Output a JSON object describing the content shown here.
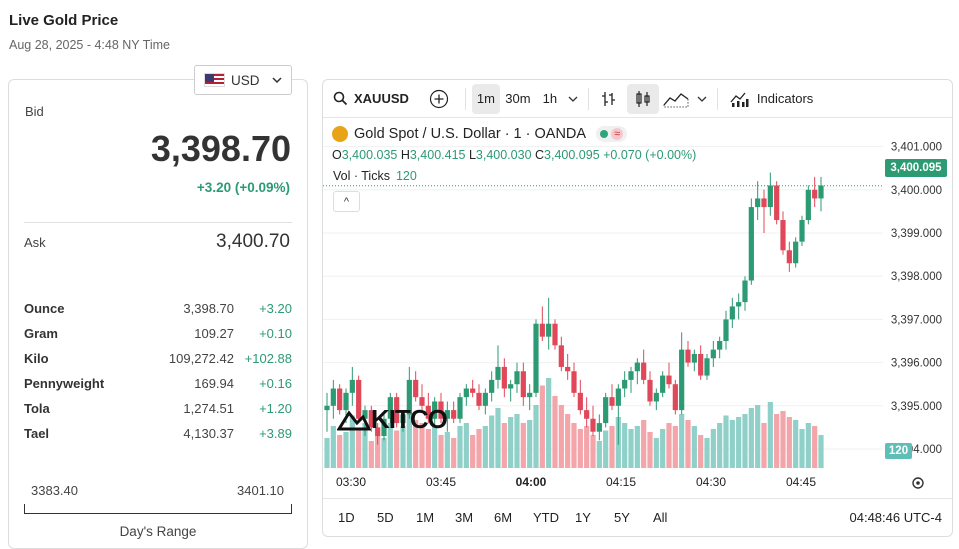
{
  "header": {
    "title": "Live Gold Price",
    "datetime": "Aug 28, 2025 - 4:48 NY Time"
  },
  "currency": {
    "selected": "USD",
    "flag_icon": "us-flag-icon"
  },
  "bid": {
    "label": "Bid",
    "value": "3,398.70",
    "change": "+3.20 (+0.09%)"
  },
  "ask": {
    "label": "Ask",
    "value": "3,400.70"
  },
  "units": [
    {
      "name": "Ounce",
      "price": "3,398.70",
      "change": "+3.20"
    },
    {
      "name": "Gram",
      "price": "109.27",
      "change": "+0.10"
    },
    {
      "name": "Kilo",
      "price": "109,272.42",
      "change": "+102.88"
    },
    {
      "name": "Pennyweight",
      "price": "169.94",
      "change": "+0.16"
    },
    {
      "name": "Tola",
      "price": "1,274.51",
      "change": "+1.20"
    },
    {
      "name": "Tael",
      "price": "4,130.37",
      "change": "+3.89"
    }
  ],
  "days_range": {
    "low": "3383.40",
    "high": "3401.10",
    "label": "Day's Range"
  },
  "toolbar": {
    "symbol": "XAUUSD",
    "intervals": [
      "1m",
      "30m",
      "1h"
    ],
    "active_interval": "1m",
    "indicators_label": "Indicators"
  },
  "legend": {
    "title": "Gold Spot / U.S. Dollar · 1 · OANDA",
    "marker_symbol": "≈",
    "o_label": "O",
    "o": "3,400.035",
    "h_label": "H",
    "h": "3,400.415",
    "l_label": "L",
    "l": "3,400.030",
    "c_label": "C",
    "c": "3,400.095",
    "chg": "+0.070 (+0.00%)",
    "vol_label": "Vol · Ticks",
    "vol_value": "120",
    "collapse_glyph": "^"
  },
  "price_tag": "3,400.095",
  "volume_tag": "120",
  "watermark": "KITCO",
  "ranges": [
    "1D",
    "5D",
    "1M",
    "3M",
    "6M",
    "YTD",
    "1Y",
    "5Y",
    "All"
  ],
  "clock": "04:48:46 UTC-4",
  "colors": {
    "up": "#2c9a73",
    "down": "#e0485a",
    "vol_up": "#8fd0c8",
    "vol_down": "#f4a5a9",
    "accent": "#2c9a73"
  },
  "chart_data": {
    "type": "candlestick",
    "y_ticks": [
      "3,401.000",
      "3,400.000",
      "3,399.000",
      "3,398.000",
      "3,397.000",
      "3,396.000",
      "3,395.000",
      "3,394.000"
    ],
    "x_ticks": [
      "03:30",
      "03:45",
      "04:00",
      "04:15",
      "04:30",
      "04:45"
    ],
    "x_ticks_bold": [
      "04:00"
    ],
    "ylim": [
      3393.3,
      3401.3
    ],
    "candles": [
      [
        3394.9,
        3395.3,
        3394.4,
        3395.0
      ],
      [
        3395.0,
        3395.6,
        3394.7,
        3395.4
      ],
      [
        3395.4,
        3395.5,
        3394.8,
        3394.9
      ],
      [
        3394.9,
        3395.4,
        3394.6,
        3395.3
      ],
      [
        3395.3,
        3395.9,
        3395.0,
        3395.6
      ],
      [
        3395.6,
        3395.7,
        3394.6,
        3394.7
      ],
      [
        3394.7,
        3395.0,
        3394.3,
        3394.9
      ],
      [
        3394.9,
        3395.0,
        3394.4,
        3394.5
      ],
      [
        3394.5,
        3394.6,
        3394.1,
        3394.3
      ],
      [
        3394.3,
        3394.8,
        3394.2,
        3394.7
      ],
      [
        3394.7,
        3395.3,
        3394.6,
        3395.2
      ],
      [
        3395.2,
        3395.3,
        3394.5,
        3394.6
      ],
      [
        3394.6,
        3394.9,
        3394.4,
        3394.8
      ],
      [
        3394.8,
        3395.9,
        3394.7,
        3395.6
      ],
      [
        3395.6,
        3395.8,
        3395.1,
        3395.2
      ],
      [
        3395.2,
        3395.5,
        3394.9,
        3395.0
      ],
      [
        3395.0,
        3395.3,
        3394.6,
        3394.7
      ],
      [
        3394.7,
        3395.2,
        3394.5,
        3395.1
      ],
      [
        3395.1,
        3395.3,
        3394.6,
        3394.7
      ],
      [
        3394.7,
        3395.1,
        3394.4,
        3394.9
      ],
      [
        3394.9,
        3395.1,
        3394.6,
        3394.7
      ],
      [
        3394.7,
        3395.3,
        3394.6,
        3395.2
      ],
      [
        3395.2,
        3395.5,
        3395.0,
        3395.4
      ],
      [
        3395.4,
        3395.6,
        3395.2,
        3395.3
      ],
      [
        3395.3,
        3395.5,
        3394.9,
        3395.0
      ],
      [
        3395.0,
        3395.4,
        3394.8,
        3395.3
      ],
      [
        3395.3,
        3395.8,
        3395.1,
        3395.6
      ],
      [
        3395.6,
        3396.4,
        3395.4,
        3395.9
      ],
      [
        3395.9,
        3396.1,
        3395.2,
        3395.4
      ],
      [
        3395.4,
        3395.6,
        3395.1,
        3395.5
      ],
      [
        3395.5,
        3396.0,
        3395.3,
        3395.8
      ],
      [
        3395.8,
        3396.0,
        3395.0,
        3395.2
      ],
      [
        3395.2,
        3395.5,
        3394.9,
        3395.3
      ],
      [
        3395.3,
        3397.0,
        3395.2,
        3396.9
      ],
      [
        3396.9,
        3397.3,
        3396.5,
        3396.6
      ],
      [
        3396.6,
        3397.5,
        3396.3,
        3396.9
      ],
      [
        3396.9,
        3397.0,
        3396.3,
        3396.4
      ],
      [
        3396.4,
        3396.6,
        3395.8,
        3395.9
      ],
      [
        3395.9,
        3396.2,
        3395.6,
        3395.8
      ],
      [
        3395.8,
        3396.0,
        3395.2,
        3395.3
      ],
      [
        3395.3,
        3395.6,
        3394.8,
        3394.9
      ],
      [
        3394.9,
        3395.2,
        3394.5,
        3394.7
      ],
      [
        3394.7,
        3395.0,
        3394.3,
        3394.4
      ],
      [
        3394.4,
        3394.8,
        3394.2,
        3394.6
      ],
      [
        3394.6,
        3395.3,
        3394.5,
        3395.2
      ],
      [
        3395.2,
        3395.5,
        3394.9,
        3395.0
      ],
      [
        3395.0,
        3395.5,
        3394.1,
        3395.4
      ],
      [
        3395.4,
        3395.8,
        3395.2,
        3395.6
      ],
      [
        3395.6,
        3395.9,
        3395.3,
        3395.8
      ],
      [
        3395.8,
        3396.1,
        3395.5,
        3396.0
      ],
      [
        3396.0,
        3396.3,
        3395.5,
        3395.6
      ],
      [
        3395.6,
        3395.8,
        3395.0,
        3395.1
      ],
      [
        3395.1,
        3395.4,
        3394.9,
        3395.3
      ],
      [
        3395.3,
        3395.8,
        3395.2,
        3395.7
      ],
      [
        3395.7,
        3396.0,
        3395.4,
        3395.5
      ],
      [
        3395.5,
        3395.6,
        3394.8,
        3394.9
      ],
      [
        3394.9,
        3396.7,
        3394.8,
        3396.3
      ],
      [
        3396.3,
        3396.5,
        3395.9,
        3396.0
      ],
      [
        3396.0,
        3396.3,
        3395.8,
        3396.2
      ],
      [
        3396.2,
        3396.4,
        3395.6,
        3395.7
      ],
      [
        3395.7,
        3396.2,
        3395.6,
        3396.1
      ],
      [
        3396.1,
        3396.5,
        3395.9,
        3396.3
      ],
      [
        3396.3,
        3396.6,
        3396.1,
        3396.5
      ],
      [
        3396.5,
        3397.2,
        3396.3,
        3397.0
      ],
      [
        3397.0,
        3397.5,
        3396.8,
        3397.3
      ],
      [
        3397.3,
        3397.6,
        3397.0,
        3397.4
      ],
      [
        3397.4,
        3398.0,
        3397.2,
        3397.9
      ],
      [
        3397.9,
        3399.8,
        3397.8,
        3399.6
      ],
      [
        3399.6,
        3400.2,
        3399.3,
        3399.8
      ],
      [
        3399.8,
        3400.0,
        3399.0,
        3399.6
      ],
      [
        3399.6,
        3400.4,
        3399.4,
        3400.1
      ],
      [
        3400.1,
        3400.2,
        3399.2,
        3399.3
      ],
      [
        3399.3,
        3399.5,
        3398.5,
        3398.6
      ],
      [
        3398.6,
        3398.8,
        3398.1,
        3398.3
      ],
      [
        3398.3,
        3398.9,
        3398.2,
        3398.8
      ],
      [
        3398.8,
        3399.4,
        3398.7,
        3399.3
      ],
      [
        3399.3,
        3400.1,
        3399.2,
        3400.0
      ],
      [
        3400.0,
        3400.3,
        3399.6,
        3399.8
      ],
      [
        3399.8,
        3400.3,
        3399.5,
        3400.1
      ]
    ],
    "volumes": [
      20,
      28,
      22,
      24,
      35,
      26,
      30,
      18,
      22,
      20,
      30,
      25,
      28,
      40,
      32,
      30,
      26,
      28,
      22,
      24,
      20,
      28,
      30,
      22,
      26,
      28,
      35,
      40,
      30,
      34,
      36,
      30,
      32,
      42,
      55,
      60,
      48,
      42,
      36,
      30,
      26,
      28,
      22,
      18,
      25,
      28,
      34,
      30,
      26,
      28,
      32,
      24,
      20,
      26,
      30,
      28,
      36,
      32,
      28,
      22,
      20,
      26,
      30,
      35,
      32,
      34,
      36,
      40,
      42,
      30,
      44,
      36,
      38,
      34,
      32,
      26,
      30,
      28,
      22
    ]
  }
}
